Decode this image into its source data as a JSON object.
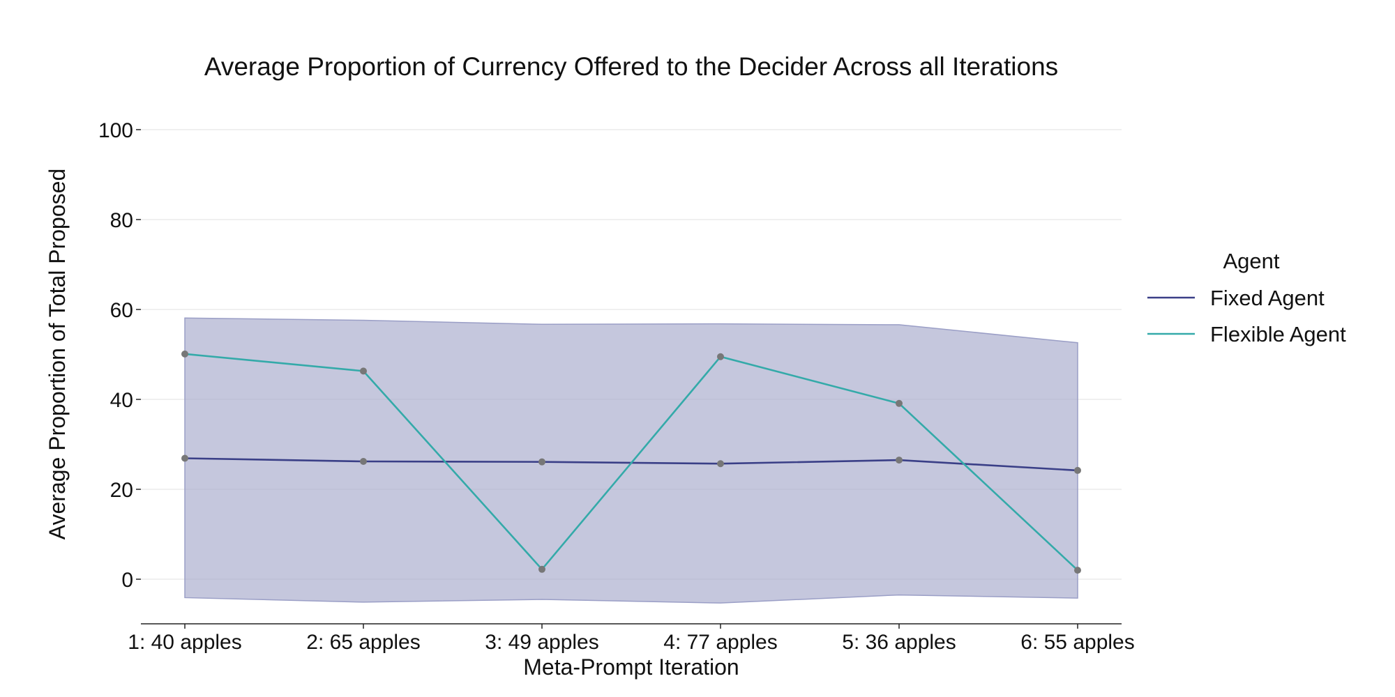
{
  "chart_data": {
    "type": "line",
    "title": "Average Proportion of Currency Offered to the Decider Across all Iterations",
    "xlabel": "Meta-Prompt Iteration",
    "ylabel": "Average Proportion of Total Proposed",
    "categories": [
      "1: 40 apples",
      "2: 65 apples",
      "3: 49 apples",
      "4: 77 apples",
      "5: 36 apples",
      "6: 55 apples"
    ],
    "ylim": [
      -10,
      100
    ],
    "yticks": [
      0,
      20,
      40,
      60,
      80,
      100
    ],
    "grid": "horizontal",
    "legend": {
      "title": "Agent",
      "placement": "right"
    },
    "series": [
      {
        "name": "Fixed Agent",
        "color": "#3a3f87",
        "values": [
          26.9,
          26.2,
          26.1,
          25.7,
          26.5,
          24.2
        ]
      },
      {
        "name": "Flexible Agent",
        "color": "#34aaa9",
        "values": [
          50.1,
          46.3,
          2.2,
          49.5,
          39.1,
          2.0
        ]
      }
    ],
    "band": {
      "series": "Fixed Agent",
      "color": "#a6a9cb",
      "upper": [
        58.1,
        57.6,
        56.7,
        56.8,
        56.6,
        52.6
      ],
      "lower": [
        -4.1,
        -5.1,
        -4.5,
        -5.3,
        -3.5,
        -4.2
      ]
    },
    "marker_color": "#777777"
  }
}
